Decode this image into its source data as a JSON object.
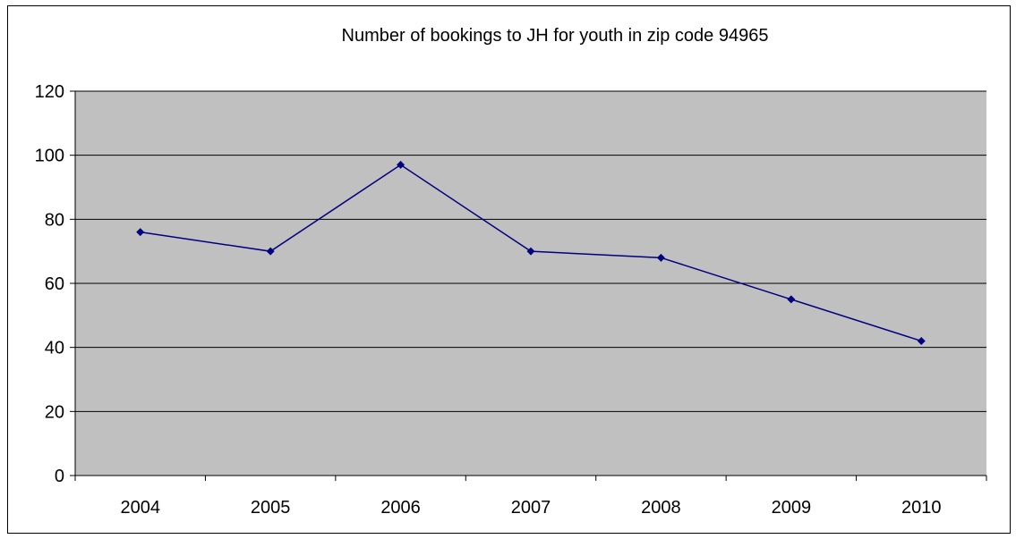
{
  "chart_data": {
    "type": "line",
    "title": "Number of bookings to JH for youth in zip code 94965",
    "xlabel": "",
    "ylabel": "",
    "categories": [
      "2004",
      "2005",
      "2006",
      "2007",
      "2008",
      "2009",
      "2010"
    ],
    "series": [
      {
        "values": [
          76,
          70,
          97,
          70,
          68,
          55,
          42
        ]
      }
    ],
    "ylim": [
      0,
      120
    ],
    "yticks": [
      0,
      20,
      40,
      60,
      80,
      100,
      120
    ],
    "grid": true,
    "legend": "none",
    "colors": {
      "line": "#000080",
      "marker": "#000080",
      "plot_bg": "#c0c0c0",
      "grid": "#000000"
    }
  }
}
